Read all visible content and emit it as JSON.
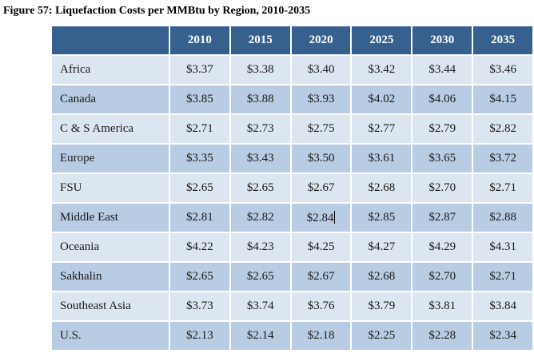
{
  "figure": {
    "title": "Figure 57: Liquefaction Costs per MMBtu by Region, 2010-2035"
  },
  "table": {
    "region_header": "",
    "columns": [
      "2010",
      "2015",
      "2020",
      "2025",
      "2030",
      "2035"
    ],
    "rows": [
      {
        "region": "Africa",
        "values": [
          "$3.37",
          "$3.38",
          "$3.40",
          "$3.42",
          "$3.44",
          "$3.46"
        ]
      },
      {
        "region": "Canada",
        "values": [
          "$3.85",
          "$3.88",
          "$3.93",
          "$4.02",
          "$4.06",
          "$4.15"
        ]
      },
      {
        "region": "C & S America",
        "values": [
          "$2.71",
          "$2.73",
          "$2.75",
          "$2.77",
          "$2.79",
          "$2.82"
        ]
      },
      {
        "region": "Europe",
        "values": [
          "$3.35",
          "$3.43",
          "$3.50",
          "$3.61",
          "$3.65",
          "$3.72"
        ]
      },
      {
        "region": "FSU",
        "values": [
          "$2.65",
          "$2.65",
          "$2.67",
          "$2.68",
          "$2.70",
          "$2.71"
        ]
      },
      {
        "region": "Middle East",
        "values": [
          "$2.81",
          "$2.82",
          "$2.84",
          "$2.85",
          "$2.87",
          "$2.88"
        ]
      },
      {
        "region": "Oceania",
        "values": [
          "$4.22",
          "$4.23",
          "$4.25",
          "$4.27",
          "$4.29",
          "$4.31"
        ]
      },
      {
        "region": "Sakhalin",
        "values": [
          "$2.65",
          "$2.65",
          "$2.67",
          "$2.68",
          "$2.70",
          "$2.71"
        ]
      },
      {
        "region": "Southeast Asia",
        "values": [
          "$3.73",
          "$3.74",
          "$3.76",
          "$3.79",
          "$3.81",
          "$3.84"
        ]
      },
      {
        "region": "U.S.",
        "values": [
          "$2.13",
          "$2.14",
          "$2.18",
          "$2.25",
          "$2.28",
          "$2.34"
        ]
      }
    ],
    "text_cursor": {
      "region": "Middle East",
      "column": "2020",
      "row_index": 5,
      "col_index": 2
    }
  },
  "colors": {
    "header_bg": "#36618F",
    "header_text": "#FFFFFF",
    "row_light_bg": "#DCE6F1",
    "row_medium_bg": "#B8CCE4",
    "gridline": "#FFFFFF",
    "body_text": "#1A1A1A"
  },
  "chart_data": {
    "type": "table",
    "title": "Figure 57: Liquefaction Costs per MMBtu by Region, 2010-2035",
    "categories": [
      "2010",
      "2015",
      "2020",
      "2025",
      "2030",
      "2035"
    ],
    "series": [
      {
        "name": "Africa",
        "values": [
          3.37,
          3.38,
          3.4,
          3.42,
          3.44,
          3.46
        ]
      },
      {
        "name": "Canada",
        "values": [
          3.85,
          3.88,
          3.93,
          4.02,
          4.06,
          4.15
        ]
      },
      {
        "name": "C & S America",
        "values": [
          2.71,
          2.73,
          2.75,
          2.77,
          2.79,
          2.82
        ]
      },
      {
        "name": "Europe",
        "values": [
          3.35,
          3.43,
          3.5,
          3.61,
          3.65,
          3.72
        ]
      },
      {
        "name": "FSU",
        "values": [
          2.65,
          2.65,
          2.67,
          2.68,
          2.7,
          2.71
        ]
      },
      {
        "name": "Middle East",
        "values": [
          2.81,
          2.82,
          2.84,
          2.85,
          2.87,
          2.88
        ]
      },
      {
        "name": "Oceania",
        "values": [
          4.22,
          4.23,
          4.25,
          4.27,
          4.29,
          4.31
        ]
      },
      {
        "name": "Sakhalin",
        "values": [
          2.65,
          2.65,
          2.67,
          2.68,
          2.7,
          2.71
        ]
      },
      {
        "name": "Southeast Asia",
        "values": [
          3.73,
          3.74,
          3.76,
          3.79,
          3.81,
          3.84
        ]
      },
      {
        "name": "U.S.",
        "values": [
          2.13,
          2.14,
          2.18,
          2.25,
          2.28,
          2.34
        ]
      }
    ]
  }
}
